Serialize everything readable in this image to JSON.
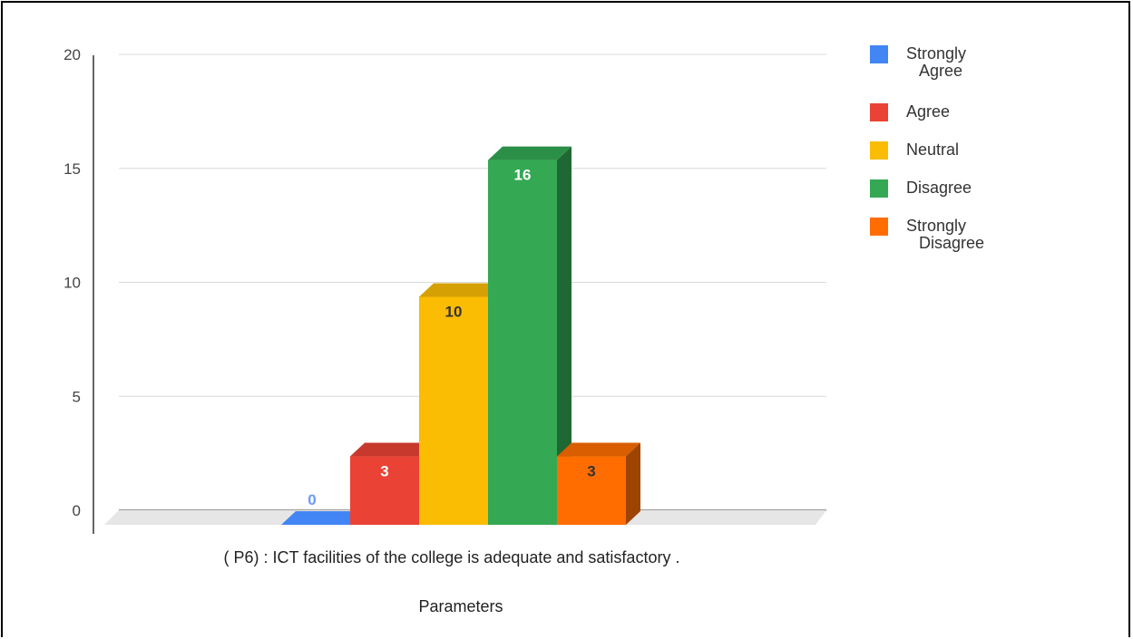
{
  "chart_data": {
    "type": "bar",
    "categories": [
      "( P6) :  ICT facilities of the college is adequate and satisfactory ."
    ],
    "xlabel": "Parameters",
    "ylabel": "",
    "ylim": [
      0,
      20
    ],
    "yticks": [
      0,
      5,
      10,
      15,
      20
    ],
    "grid": true,
    "legend_position": "right",
    "style": "3d",
    "series": [
      {
        "name": "Strongly Agree",
        "name_lines": [
          "Strongly",
          "Agree"
        ],
        "values": [
          0
        ],
        "color": "#4285F4",
        "label_color": "#6b9cf6"
      },
      {
        "name": "Agree",
        "name_lines": [
          "Agree"
        ],
        "values": [
          3
        ],
        "color": "#EA4335",
        "label_color": "#ffffff"
      },
      {
        "name": "Neutral",
        "name_lines": [
          "Neutral"
        ],
        "values": [
          10
        ],
        "color": "#FBBC04",
        "label_color": "#333333"
      },
      {
        "name": "Disagree",
        "name_lines": [
          "Disagree"
        ],
        "values": [
          16
        ],
        "color": "#34A853",
        "label_color": "#ffffff"
      },
      {
        "name": "Strongly Disagree",
        "name_lines": [
          "Strongly",
          "Disagree"
        ],
        "values": [
          3
        ],
        "color": "#FF6D01",
        "label_color": "#333333"
      }
    ]
  }
}
